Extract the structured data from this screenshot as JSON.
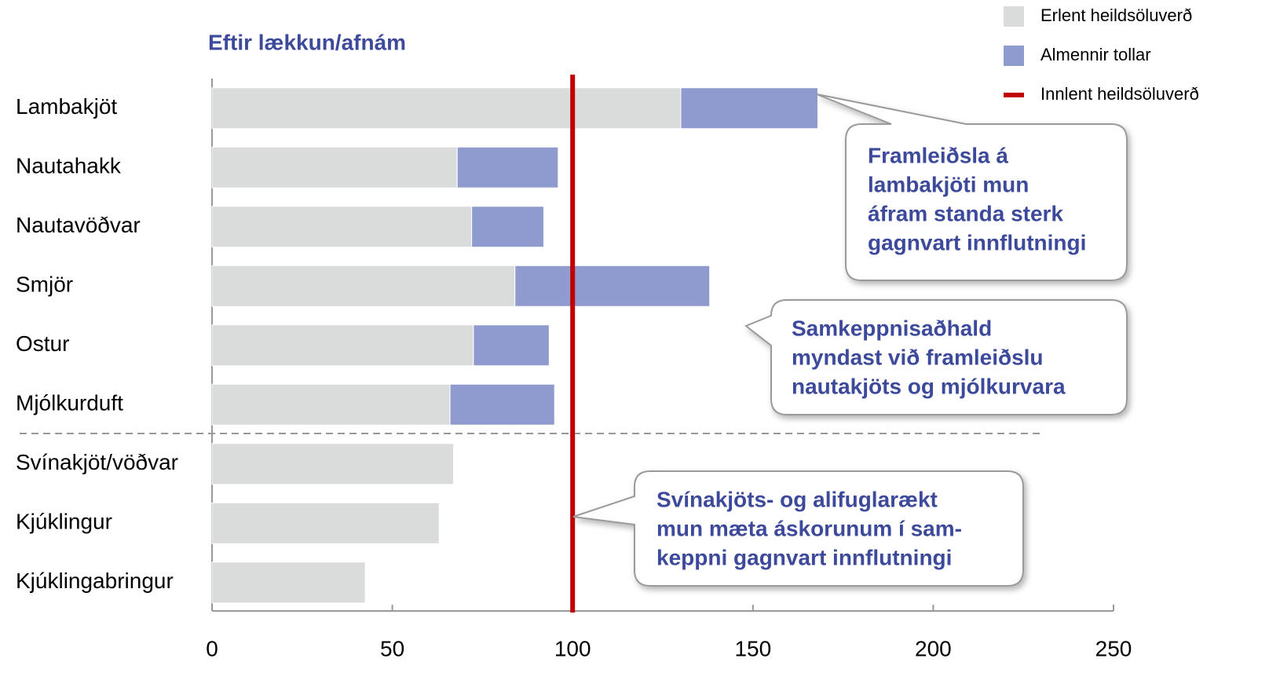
{
  "chart_data": {
    "type": "stacked-barh",
    "subtitle": "Eftir lækkun/afnám",
    "categories": [
      "Lambakjöt",
      "Nautahakk",
      "Nautavöðvar",
      "Smjör",
      "Ostur",
      "Mjólkurduft",
      "Svínakjöt/vöðvar",
      "Kjúklingur",
      "Kjúklingabringur"
    ],
    "series": [
      {
        "name": "Erlent heildsöluverð",
        "color": "#d9dcdb",
        "values": [
          130,
          68,
          72,
          84,
          72.5,
          66,
          67,
          63,
          42.5
        ]
      },
      {
        "name": "Almennir tollar",
        "color": "#8f9bcf",
        "values": [
          38,
          28,
          20,
          54,
          21,
          29,
          null,
          null,
          null
        ]
      }
    ],
    "reference_line": {
      "name": "Innlent heildsöluverð",
      "value": 100,
      "color": "#c00000"
    },
    "xlim": [
      0,
      250
    ],
    "xticks": [
      0,
      50,
      100,
      150,
      200,
      250
    ],
    "annotations": [
      {
        "lines": [
          "Framleiðsla á",
          "lambakjöti mun",
          "áfram standa sterk",
          "gagnvart innflutningi"
        ]
      },
      {
        "lines": [
          "Samkeppnisaðhald",
          "myndast við framleiðslu",
          "nautakjöts og mjólkurvara"
        ]
      },
      {
        "lines": [
          "Svínakjöts- og alifuglarækt",
          "mun mæta áskorunum í sam-",
          "keppni gagnvart innflutningi"
        ]
      }
    ]
  }
}
